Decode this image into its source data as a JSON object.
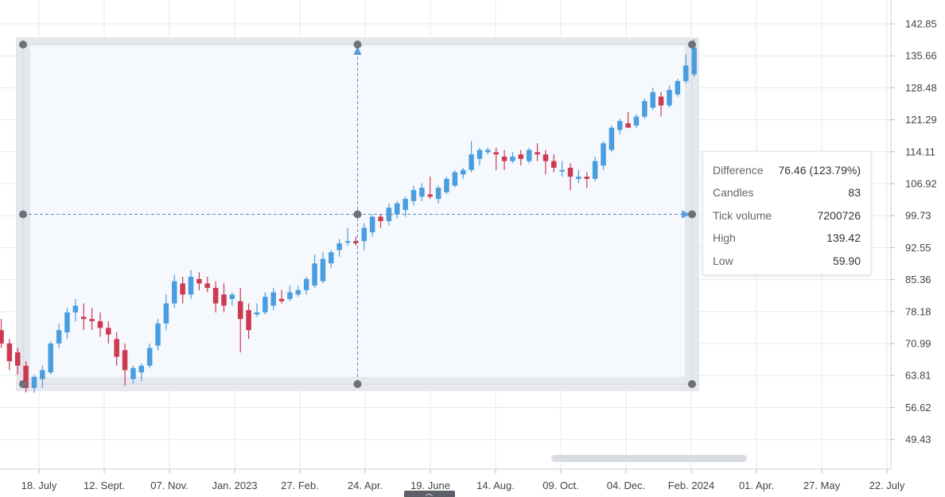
{
  "chart_data": {
    "type": "candlestick",
    "y_axis": {
      "position": "right",
      "ticks": [
        "142.85",
        "135.66",
        "128.48",
        "121.29",
        "114.11",
        "106.92",
        "99.73",
        "92.55",
        "85.36",
        "78.18",
        "70.99",
        "63.81",
        "56.62",
        "49.43"
      ],
      "range": [
        45.5,
        147.0
      ]
    },
    "x_axis": {
      "ticks": [
        "18. July",
        "12. Sept.",
        "07. Nov.",
        "Jan. 2023",
        "27. Feb.",
        "24. Apr.",
        "19. June",
        "14. Aug.",
        "09. Oct.",
        "04. Dec.",
        "Feb. 2024",
        "01. Apr.",
        "27. May",
        "22. July"
      ]
    },
    "grid": true,
    "colors": {
      "up": "#4a9ee0",
      "down": "#cd3a50",
      "selection_fill": "#f5f8fd",
      "selection_border": "#e4e7ec",
      "handle": "#6e7178",
      "arrow": "#5b9ee0",
      "dashed": "#5c8fc2",
      "grid": "#e6e8ec"
    },
    "candles": [
      [
        74.0,
        76.5,
        70.0,
        71.0
      ],
      [
        71.0,
        72.0,
        65.0,
        67.0
      ],
      [
        69.0,
        70.0,
        64.0,
        66.0
      ],
      [
        66.0,
        67.0,
        60.0,
        61.0
      ],
      [
        61.0,
        64.0,
        59.9,
        63.5
      ],
      [
        63.0,
        66.0,
        61.0,
        65.0
      ],
      [
        64.5,
        71.5,
        64.0,
        71.0
      ],
      [
        71.0,
        75.5,
        70.0,
        74.0
      ],
      [
        73.5,
        79.0,
        72.0,
        78.0
      ],
      [
        78.0,
        81.0,
        76.0,
        79.5
      ],
      [
        77.0,
        80.0,
        74.0,
        76.5
      ],
      [
        76.5,
        79.0,
        74.0,
        76.0
      ],
      [
        76.0,
        78.0,
        72.5,
        74.5
      ],
      [
        74.5,
        76.0,
        71.0,
        73.0
      ],
      [
        72.0,
        73.5,
        66.0,
        68.0
      ],
      [
        69.5,
        71.0,
        61.5,
        65.0
      ],
      [
        63.0,
        66.0,
        62.0,
        65.5
      ],
      [
        64.5,
        66.5,
        62.5,
        66.0
      ],
      [
        66.0,
        71.0,
        65.5,
        70.0
      ],
      [
        70.5,
        76.5,
        69.5,
        75.5
      ],
      [
        75.5,
        82.0,
        74.0,
        80.0
      ],
      [
        80.0,
        86.5,
        79.0,
        85.0
      ],
      [
        84.5,
        86.0,
        80.0,
        82.0
      ],
      [
        82.0,
        87.5,
        81.0,
        86.0
      ],
      [
        85.5,
        87.0,
        83.0,
        84.5
      ],
      [
        84.5,
        86.0,
        82.5,
        83.5
      ],
      [
        83.5,
        85.0,
        78.0,
        80.0
      ],
      [
        82.0,
        84.5,
        78.0,
        79.5
      ],
      [
        81.0,
        82.5,
        79.5,
        82.0
      ],
      [
        80.5,
        83.5,
        69.0,
        76.5
      ],
      [
        78.5,
        80.0,
        72.0,
        74.0
      ],
      [
        77.5,
        80.0,
        77.0,
        78.0
      ],
      [
        78.0,
        82.5,
        77.5,
        81.5
      ],
      [
        79.5,
        83.5,
        78.5,
        82.5
      ],
      [
        81.0,
        83.0,
        80.0,
        80.5
      ],
      [
        81.0,
        84.0,
        80.5,
        82.5
      ],
      [
        82.0,
        84.0,
        81.5,
        83.0
      ],
      [
        83.0,
        86.0,
        82.0,
        85.5
      ],
      [
        84.0,
        91.0,
        83.5,
        89.0
      ],
      [
        85.0,
        91.5,
        84.5,
        90.0
      ],
      [
        89.0,
        92.0,
        88.0,
        91.5
      ],
      [
        92.0,
        94.5,
        90.5,
        93.5
      ],
      [
        94.0,
        97.0,
        93.0,
        94.0
      ],
      [
        94.0,
        95.0,
        93.0,
        93.5
      ],
      [
        94.0,
        98.0,
        92.0,
        97.0
      ],
      [
        96.0,
        100.0,
        95.0,
        99.5
      ],
      [
        99.5,
        100.0,
        97.0,
        98.5
      ],
      [
        98.5,
        102.5,
        97.5,
        101.5
      ],
      [
        100.0,
        103.0,
        99.0,
        102.5
      ],
      [
        101.0,
        104.0,
        99.5,
        103.5
      ],
      [
        103.0,
        106.5,
        102.0,
        105.5
      ],
      [
        104.0,
        107.0,
        103.0,
        106.0
      ],
      [
        104.5,
        108.5,
        103.5,
        104.0
      ],
      [
        103.5,
        106.5,
        102.5,
        106.0
      ],
      [
        105.0,
        108.5,
        104.5,
        108.0
      ],
      [
        106.5,
        110.0,
        106.0,
        109.5
      ],
      [
        109.0,
        110.5,
        108.0,
        110.0
      ],
      [
        110.0,
        116.5,
        109.5,
        113.5
      ],
      [
        112.5,
        115.0,
        111.0,
        114.5
      ],
      [
        114.0,
        115.0,
        113.5,
        114.5
      ],
      [
        114.0,
        115.0,
        110.0,
        113.5
      ],
      [
        113.0,
        114.5,
        110.0,
        112.0
      ],
      [
        112.0,
        114.0,
        111.5,
        113.0
      ],
      [
        113.5,
        114.5,
        111.0,
        112.5
      ],
      [
        112.0,
        115.0,
        111.5,
        114.5
      ],
      [
        114.0,
        116.0,
        112.0,
        113.5
      ],
      [
        113.5,
        114.5,
        109.0,
        112.0
      ],
      [
        112.0,
        113.5,
        109.5,
        110.5
      ],
      [
        110.0,
        112.0,
        108.5,
        110.0
      ],
      [
        110.5,
        111.5,
        105.5,
        108.5
      ],
      [
        108.0,
        110.0,
        107.0,
        108.5
      ],
      [
        108.5,
        109.5,
        106.0,
        108.0
      ],
      [
        108.0,
        113.0,
        107.5,
        112.0
      ],
      [
        111.0,
        116.5,
        110.0,
        116.0
      ],
      [
        114.5,
        120.0,
        114.0,
        119.5
      ],
      [
        119.0,
        121.5,
        118.0,
        121.0
      ],
      [
        120.5,
        123.0,
        119.5,
        119.5
      ],
      [
        120.0,
        122.5,
        119.5,
        122.0
      ],
      [
        122.0,
        126.0,
        121.5,
        125.5
      ],
      [
        124.0,
        128.5,
        123.5,
        127.5
      ],
      [
        126.5,
        127.5,
        122.0,
        124.5
      ],
      [
        124.5,
        129.0,
        124.0,
        128.0
      ],
      [
        127.0,
        130.5,
        126.5,
        130.0
      ],
      [
        130.0,
        136.0,
        129.5,
        133.5
      ],
      [
        131.5,
        139.42,
        131.0,
        137.5
      ]
    ],
    "measure": {
      "difference": "76.46 (123.79%)",
      "candles": "83",
      "tick_volume": "7200726",
      "high": "139.42",
      "low": "59.90"
    }
  },
  "stats_panel": {
    "rows": [
      {
        "label": "Difference",
        "value": "76.46 (123.79%)"
      },
      {
        "label": "Candles",
        "value": "83"
      },
      {
        "label": "Tick volume",
        "value": "7200726"
      },
      {
        "label": "High",
        "value": "139.42"
      },
      {
        "label": "Low",
        "value": "59.90"
      }
    ]
  },
  "bottom_handle_glyph": "︿"
}
